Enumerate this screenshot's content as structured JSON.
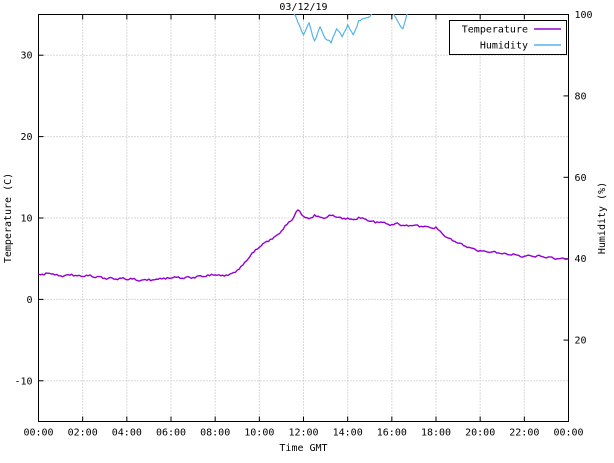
{
  "chart_data": {
    "type": "line",
    "title": "03/12/19",
    "xlabel": "Time GMT",
    "ylabel": "Temperature (C)",
    "y2label": "Humidity (%)",
    "xlim_hours": [
      0,
      24
    ],
    "x_ticks_hours": [
      0,
      2,
      4,
      6,
      8,
      10,
      12,
      14,
      16,
      18,
      20,
      22,
      24
    ],
    "x_tick_labels": [
      "00:00",
      "02:00",
      "04:00",
      "06:00",
      "08:00",
      "10:00",
      "12:00",
      "14:00",
      "16:00",
      "18:00",
      "20:00",
      "22:00",
      "00:00"
    ],
    "ylim": [
      -15,
      35
    ],
    "y_ticks": [
      -10,
      0,
      10,
      20,
      30
    ],
    "y2lim": [
      0,
      100
    ],
    "y2_ticks": [
      20,
      40,
      60,
      80,
      100
    ],
    "grid": true,
    "grid_color": "#b4b4b4",
    "x_start": 0,
    "x_step": 0.25,
    "legend": {
      "position": "top-right",
      "entries": [
        {
          "label": "Temperature",
          "color": "#9400d3"
        },
        {
          "label": "Humidity",
          "color": "#56b4e9"
        }
      ]
    },
    "series": [
      {
        "name": "Temperature",
        "axis": "y1",
        "units": "C",
        "color": "#9400d3",
        "values": [
          3.1,
          3.0,
          3.2,
          3.0,
          2.9,
          3.0,
          3.1,
          2.9,
          2.8,
          2.9,
          2.7,
          2.8,
          2.6,
          2.7,
          2.5,
          2.6,
          2.4,
          2.5,
          2.3,
          2.4,
          2.5,
          2.4,
          2.6,
          2.5,
          2.6,
          2.7,
          2.6,
          2.8,
          2.7,
          2.9,
          2.8,
          2.9,
          3.0,
          2.9,
          3.0,
          3.2,
          3.6,
          4.2,
          5.0,
          5.8,
          6.4,
          7.0,
          7.4,
          7.8,
          8.4,
          9.2,
          9.8,
          11.0,
          10.2,
          9.9,
          10.4,
          10.1,
          10.0,
          10.3,
          10.1,
          9.9,
          10.0,
          9.8,
          10.1,
          9.9,
          9.6,
          9.4,
          9.5,
          9.3,
          9.2,
          9.4,
          9.1,
          9.0,
          9.1,
          8.9,
          9.0,
          8.8,
          8.9,
          8.2,
          7.6,
          7.2,
          6.9,
          6.6,
          6.4,
          6.2,
          6.0,
          5.9,
          5.8,
          5.7,
          5.6,
          5.5,
          5.6,
          5.4,
          5.3,
          5.4,
          5.2,
          5.3,
          5.1,
          5.2,
          5.0,
          5.1,
          5.0
        ]
      },
      {
        "name": "Humidity",
        "axis": "y2",
        "units": "%",
        "color": "#56b4e9",
        "values": [
          101,
          101,
          101,
          101,
          101,
          101,
          101,
          101,
          101,
          101,
          101,
          101,
          101,
          101,
          101,
          101,
          101,
          101,
          101,
          101,
          101,
          101,
          101,
          101,
          101,
          101,
          101,
          101,
          101,
          101,
          101,
          101,
          101,
          101,
          101,
          101,
          101,
          101,
          101,
          101,
          101,
          101,
          101,
          101,
          101,
          101,
          101,
          98,
          95,
          98,
          93.5,
          97,
          94,
          93,
          96.5,
          94.5,
          97.5,
          95,
          98.5,
          99,
          99.5,
          101,
          101,
          101,
          101,
          98.5,
          96.5,
          101,
          101,
          101,
          101,
          101,
          101,
          101,
          101,
          101,
          101,
          101,
          101,
          101,
          101,
          101,
          101,
          101,
          101,
          101,
          101,
          101,
          101,
          101,
          101,
          101,
          101,
          101,
          101,
          101,
          101
        ]
      }
    ]
  }
}
